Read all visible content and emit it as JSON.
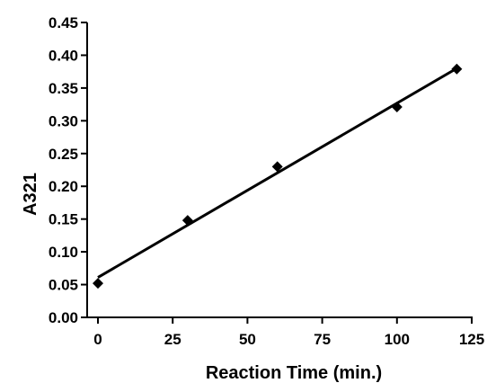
{
  "chart_data": {
    "type": "scatter",
    "title": "",
    "xlabel": "Reaction Time (min.)",
    "ylabel": "A321",
    "xlim": [
      0,
      125
    ],
    "ylim": [
      0.0,
      0.45
    ],
    "x_ticks": [
      "0",
      "25",
      "50",
      "75",
      "100",
      "125"
    ],
    "y_ticks": [
      "0.00",
      "0.05",
      "0.10",
      "0.15",
      "0.20",
      "0.25",
      "0.30",
      "0.35",
      "0.40",
      "0.45"
    ],
    "grid": false,
    "marker": "diamond",
    "series": [
      {
        "x": [
          0,
          30,
          60,
          100,
          120
        ],
        "y": [
          0.052,
          0.148,
          0.23,
          0.321,
          0.379
        ]
      }
    ],
    "fit_line": {
      "x": [
        0,
        120
      ],
      "y": [
        0.061,
        0.38
      ]
    }
  }
}
